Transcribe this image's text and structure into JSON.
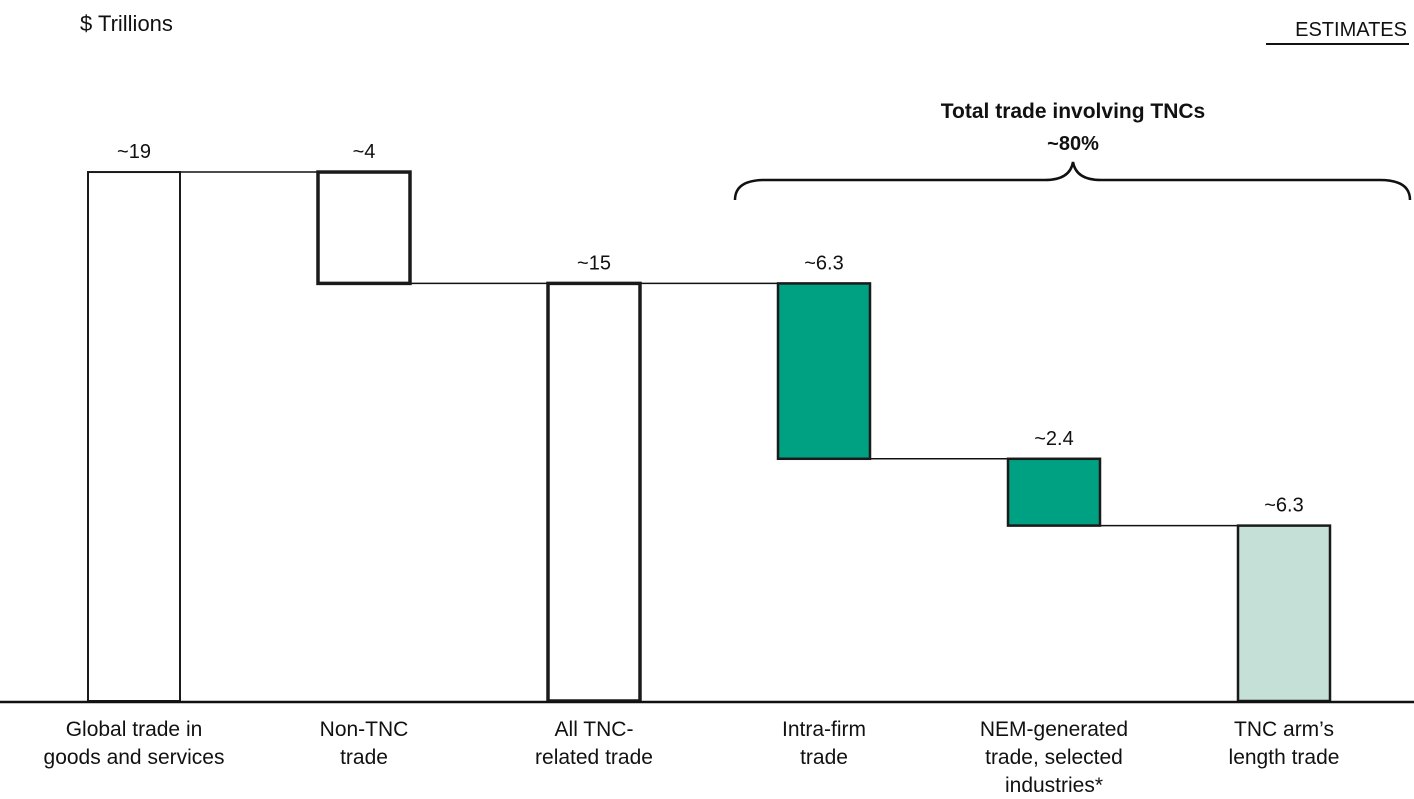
{
  "chart_data": {
    "type": "waterfall",
    "unit_label": "$ Trillions",
    "badge": "ESTIMATES",
    "bars": [
      {
        "category": [
          "Global trade in",
          "goods and services"
        ],
        "value_label": "~19",
        "start": 0,
        "end": 19,
        "style": "outline"
      },
      {
        "category": [
          "Non-TNC",
          "trade"
        ],
        "value_label": "~4",
        "start": 15,
        "end": 19,
        "style": "outline-bold"
      },
      {
        "category": [
          "All TNC-",
          "related trade"
        ],
        "value_label": "~15",
        "start": 0,
        "end": 15,
        "style": "outline-bold"
      },
      {
        "category": [
          "Intra-firm",
          "trade"
        ],
        "value_label": "~6.3",
        "start": 8.7,
        "end": 15,
        "style": "dark-green"
      },
      {
        "category": [
          "NEM-generated",
          "trade, selected",
          "industries*"
        ],
        "value_label": "~2.4",
        "start": 6.3,
        "end": 8.7,
        "style": "dark-green"
      },
      {
        "category": [
          "TNC arm’s",
          "length trade"
        ],
        "value_label": "~6.3",
        "start": 0,
        "end": 6.3,
        "style": "light-green"
      }
    ],
    "brace": {
      "title": "Total trade involving TNCs",
      "value": "~80%"
    },
    "colors": {
      "dark_green": "#00a082",
      "light_green": "#c5e0d7",
      "outline": "#1a1a1a"
    }
  }
}
